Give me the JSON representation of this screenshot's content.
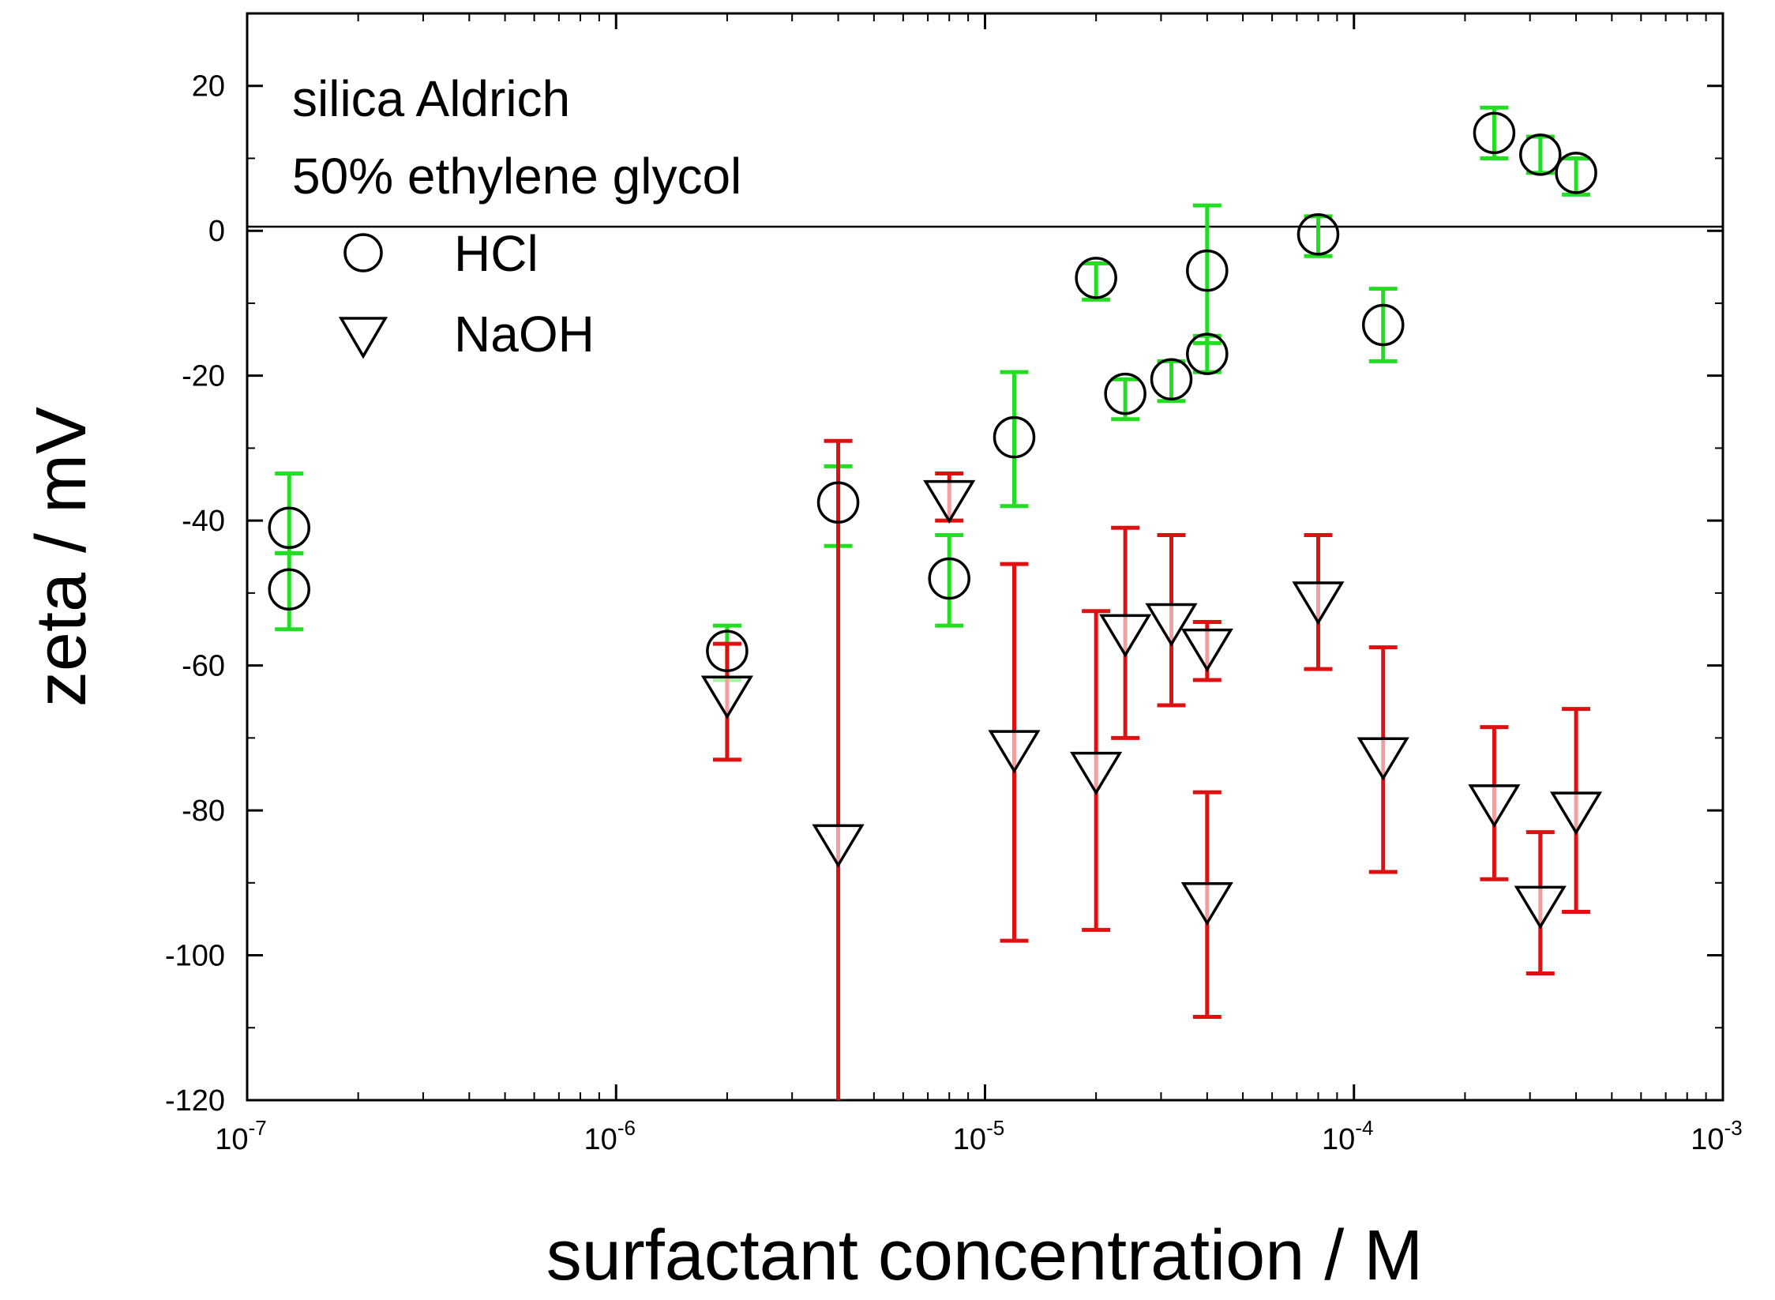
{
  "chart_data": {
    "type": "scatter",
    "title": "",
    "xlabel": "surfactant concentration / M",
    "ylabel": "zeta / mV",
    "x_scale": "log",
    "xlim": [
      1e-07,
      0.001
    ],
    "ylim": [
      -120,
      30
    ],
    "x_ticks": [
      {
        "base": "10",
        "exp": "-7"
      },
      {
        "base": "10",
        "exp": "-6"
      },
      {
        "base": "10",
        "exp": "-5"
      },
      {
        "base": "10",
        "exp": "-4"
      },
      {
        "base": "10",
        "exp": "-3"
      }
    ],
    "y_ticks": [
      "20",
      "0",
      "-20",
      "-40",
      "-60",
      "-80",
      "-100",
      "-120"
    ],
    "annotations": [
      "silica Aldrich",
      "50% ethylene glycol"
    ],
    "legend_position": "top-left",
    "zero_line": true,
    "series": [
      {
        "name": "HCl",
        "marker": "circle",
        "error_color": "#22dd22",
        "points": [
          {
            "x": 1.3e-07,
            "y": -41,
            "lo": -44.5,
            "hi": -33.5
          },
          {
            "x": 1.3e-07,
            "y": -49.5,
            "lo": -55,
            "hi": -44.5
          },
          {
            "x": 2e-06,
            "y": -58,
            "lo": -62,
            "hi": -54.5
          },
          {
            "x": 4e-06,
            "y": -37.5,
            "lo": -43.5,
            "hi": -32.5
          },
          {
            "x": 8e-06,
            "y": -48,
            "lo": -54.5,
            "hi": -42
          },
          {
            "x": 1.2e-05,
            "y": -28.5,
            "lo": -38,
            "hi": -19.5
          },
          {
            "x": 2e-05,
            "y": -6.5,
            "lo": -9.5,
            "hi": -4.5
          },
          {
            "x": 2.4e-05,
            "y": -22.5,
            "lo": -26,
            "hi": -20.5
          },
          {
            "x": 3.2e-05,
            "y": -20.5,
            "lo": -23.5,
            "hi": -18
          },
          {
            "x": 4e-05,
            "y": -5.5,
            "lo": -15.5,
            "hi": 3.5
          },
          {
            "x": 4e-05,
            "y": -17,
            "lo": -19.5,
            "hi": -14.5
          },
          {
            "x": 8e-05,
            "y": -0.5,
            "lo": -3.5,
            "hi": 2
          },
          {
            "x": 0.00012,
            "y": -13,
            "lo": -18,
            "hi": -8
          },
          {
            "x": 0.00024,
            "y": 13.5,
            "lo": 10,
            "hi": 17
          },
          {
            "x": 0.00032,
            "y": 10.5,
            "lo": 8,
            "hi": 13
          },
          {
            "x": 0.0004,
            "y": 8,
            "lo": 5,
            "hi": 10
          }
        ]
      },
      {
        "name": "NaOH",
        "marker": "triangle-down",
        "error_color": "#dd1111",
        "points": [
          {
            "x": 2e-06,
            "y": -64,
            "lo": -73,
            "hi": -57
          },
          {
            "x": 4e-06,
            "y": -84.5,
            "lo": -122,
            "hi": -29
          },
          {
            "x": 8e-06,
            "y": -37,
            "lo": -40,
            "hi": -33.5
          },
          {
            "x": 1.2e-05,
            "y": -71.5,
            "lo": -98,
            "hi": -46
          },
          {
            "x": 2e-05,
            "y": -74.5,
            "lo": -96.5,
            "hi": -52.5
          },
          {
            "x": 2.4e-05,
            "y": -55.5,
            "lo": -70,
            "hi": -41
          },
          {
            "x": 3.2e-05,
            "y": -54,
            "lo": -65.5,
            "hi": -42
          },
          {
            "x": 4e-05,
            "y": -57.5,
            "lo": -62,
            "hi": -54
          },
          {
            "x": 4e-05,
            "y": -92.5,
            "lo": -108.5,
            "hi": -77.5
          },
          {
            "x": 8e-05,
            "y": -51,
            "lo": -60.5,
            "hi": -42
          },
          {
            "x": 0.00012,
            "y": -72.5,
            "lo": -88.5,
            "hi": -57.5
          },
          {
            "x": 0.00024,
            "y": -79,
            "lo": -89.5,
            "hi": -68.5
          },
          {
            "x": 0.00032,
            "y": -93,
            "lo": -102.5,
            "hi": -83
          },
          {
            "x": 0.0004,
            "y": -80,
            "lo": -94,
            "hi": -66
          }
        ]
      }
    ]
  }
}
